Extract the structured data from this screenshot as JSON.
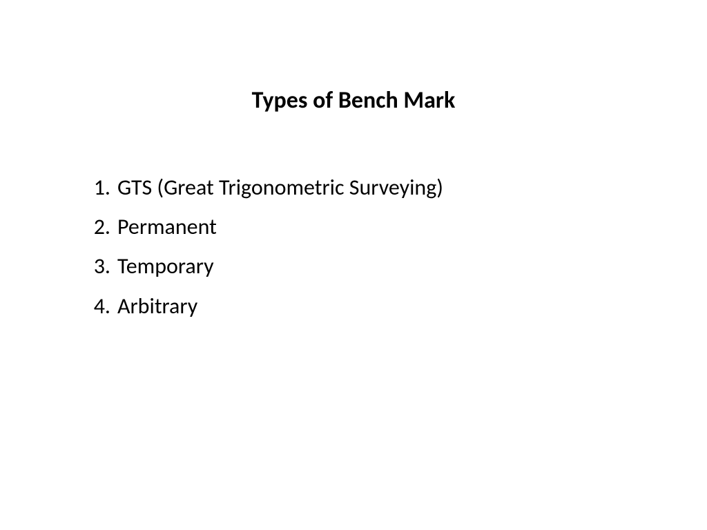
{
  "slide": {
    "title": "Types of Bench Mark",
    "items": [
      "GTS (Great Trigonometric Surveying)",
      "Permanent",
      "Temporary",
      "Arbitrary"
    ],
    "background_color": "#ffffff",
    "text_color": "#000000",
    "title_fontsize": 34,
    "body_fontsize": 32,
    "font_family": "Calibri"
  }
}
